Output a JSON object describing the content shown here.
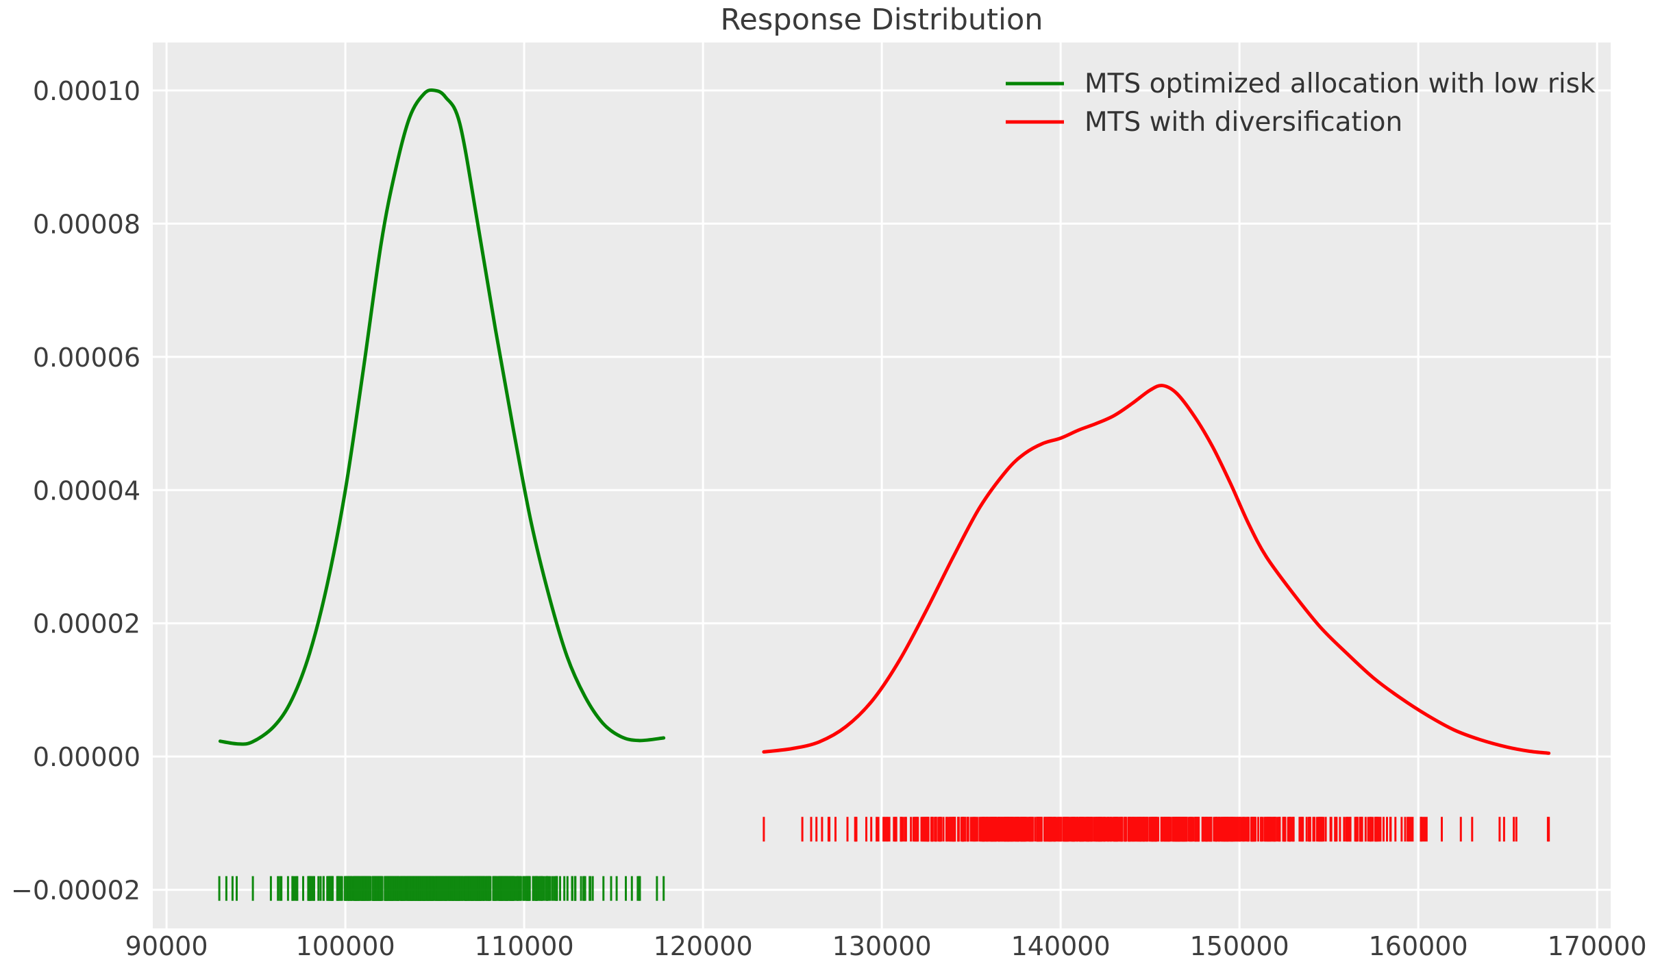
{
  "figure": {
    "background": "#ffffff",
    "plot_background": "#ebebeb",
    "grid_color": "#ffffff",
    "title_color": "#3a3a3a",
    "tick_color": "#3d3d3d",
    "legend_text_color": "#333333"
  },
  "chart_data": {
    "type": "line",
    "title": "Response Distribution",
    "xlabel": "",
    "ylabel": "",
    "grid": true,
    "xlim": [
      89230,
      170760
    ],
    "ylim": [
      -2.58e-05,
      0.0001072
    ],
    "x_ticks": [
      90000,
      100000,
      110000,
      120000,
      130000,
      140000,
      150000,
      160000,
      170000
    ],
    "x_tick_labels": [
      "90000",
      "100000",
      "110000",
      "120000",
      "130000",
      "140000",
      "150000",
      "160000",
      "170000"
    ],
    "y_ticks": [
      -2e-05,
      0.0,
      2e-05,
      4e-05,
      6e-05,
      8e-05,
      0.0001
    ],
    "y_tick_labels": [
      "−0.00002",
      "0.00000",
      "0.00002",
      "0.00004",
      "0.00006",
      "0.00008",
      "0.00010"
    ],
    "legend": {
      "location": "upper right",
      "frame": false
    },
    "series": [
      {
        "name": "MTS optimized allocation with low risk",
        "color": "#048404",
        "line_width": 5,
        "x": [
          93000,
          94000,
          94800,
          96000,
          97000,
          98000,
          99000,
          100000,
          101000,
          102000,
          102800,
          103600,
          104400,
          105000,
          105600,
          106400,
          107400,
          108400,
          109400,
          110400,
          111400,
          112400,
          113400,
          114400,
          115400,
          116400,
          117800
        ],
        "y": [
          2.3e-06,
          1.9e-06,
          2.2e-06,
          4.5e-06,
          8.5e-06,
          1.55e-05,
          2.6e-05,
          4e-05,
          5.8e-05,
          7.7e-05,
          8.8e-05,
          9.6e-05,
          9.95e-05,
          0.0001,
          9.9e-05,
          9.5e-05,
          8e-05,
          6.4e-05,
          4.9e-05,
          3.5e-05,
          2.4e-05,
          1.5e-05,
          9e-06,
          5e-06,
          3e-06,
          2.4e-06,
          2.8e-06
        ],
        "peak": {
          "x": 105000,
          "y": 0.0001
        },
        "rug": {
          "offset": -1.98e-05,
          "tick_height": 3.7e-06,
          "approx_count": 600,
          "x_min": 92950,
          "x_max": 117800
        }
      },
      {
        "name": "MTS with diversification",
        "color": "#ff0000",
        "line_width": 5,
        "x": [
          123400,
          125000,
          126500,
          128000,
          129500,
          131000,
          132500,
          134000,
          135500,
          137000,
          138000,
          139000,
          140000,
          141000,
          142000,
          143000,
          144000,
          145000,
          145700,
          146500,
          147500,
          148500,
          149500,
          150500,
          151500,
          153000,
          154500,
          156000,
          157500,
          159000,
          160500,
          162000,
          163500,
          165000,
          166200,
          167300
        ],
        "y": [
          7e-07,
          1.2e-06,
          2.2e-06,
          4.5e-06,
          8.5e-06,
          1.45e-05,
          2.2e-05,
          3e-05,
          3.75e-05,
          4.3e-05,
          4.55e-05,
          4.7e-05,
          4.78e-05,
          4.9e-05,
          5e-05,
          5.12e-05,
          5.3e-05,
          5.5e-05,
          5.57e-05,
          5.45e-05,
          5.1e-05,
          4.65e-05,
          4.1e-05,
          3.5e-05,
          3e-05,
          2.45e-05,
          1.95e-05,
          1.55e-05,
          1.18e-05,
          8.8e-06,
          6.2e-06,
          4e-06,
          2.5e-06,
          1.4e-06,
          8e-07,
          5e-07
        ],
        "peak": {
          "x": 145700,
          "y": 5.57e-05
        },
        "rug": {
          "offset": -1.09e-05,
          "tick_height": 3.7e-06,
          "approx_count": 700,
          "x_min": 123400,
          "x_max": 167300
        }
      }
    ]
  }
}
